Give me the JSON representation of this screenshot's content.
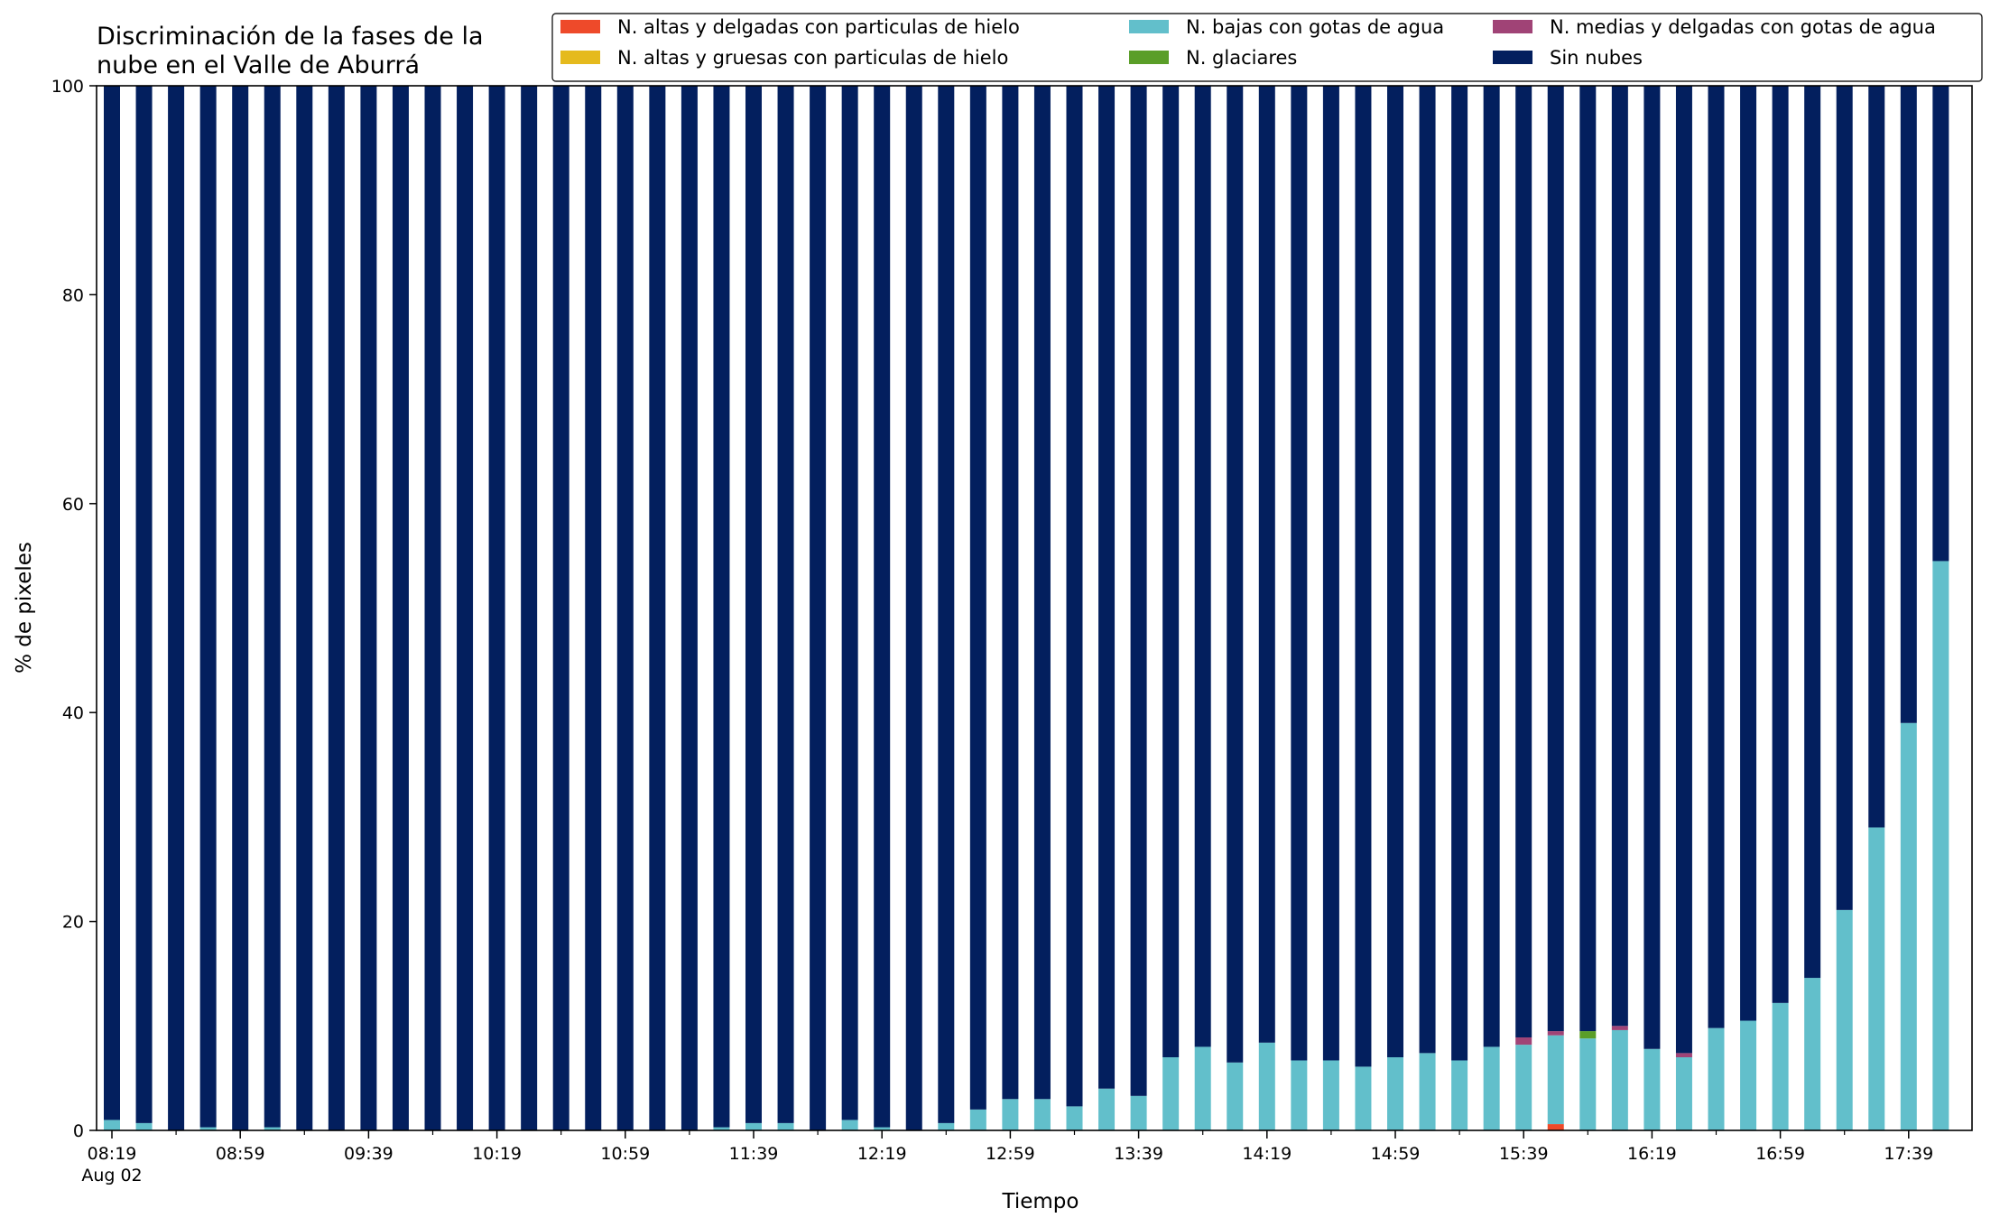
{
  "chart_data": {
    "type": "bar",
    "stacked": true,
    "title": "Discriminación de la fases de la\nnube en el Valle de Aburrá",
    "xlabel": "Tiempo",
    "ylabel": "% de pixeles",
    "ylim": [
      0,
      100
    ],
    "yticks": [
      0,
      20,
      40,
      60,
      80,
      100
    ],
    "grid": false,
    "legend_position": "top-right",
    "x_major_ticks": [
      {
        "index": 0,
        "label": "08:19",
        "sublabel": "Aug 02"
      },
      {
        "index": 4,
        "label": "08:59",
        "sublabel": ""
      },
      {
        "index": 8,
        "label": "09:39",
        "sublabel": ""
      },
      {
        "index": 12,
        "label": "10:19",
        "sublabel": ""
      },
      {
        "index": 16,
        "label": "10:59",
        "sublabel": ""
      },
      {
        "index": 20,
        "label": "11:39",
        "sublabel": ""
      },
      {
        "index": 24,
        "label": "12:19",
        "sublabel": ""
      },
      {
        "index": 28,
        "label": "12:59",
        "sublabel": ""
      },
      {
        "index": 32,
        "label": "13:39",
        "sublabel": ""
      },
      {
        "index": 36,
        "label": "14:19",
        "sublabel": ""
      },
      {
        "index": 40,
        "label": "14:59",
        "sublabel": ""
      },
      {
        "index": 44,
        "label": "15:39",
        "sublabel": ""
      },
      {
        "index": 48,
        "label": "16:19",
        "sublabel": ""
      },
      {
        "index": 52,
        "label": "16:59",
        "sublabel": ""
      },
      {
        "index": 56,
        "label": "17:39",
        "sublabel": ""
      }
    ],
    "bar_count": 58,
    "series": [
      {
        "name": "N. altas y delgadas con particulas de hielo",
        "color": "#EE4A2A",
        "values": [
          0,
          0,
          0,
          0,
          0,
          0,
          0,
          0,
          0,
          0,
          0,
          0,
          0,
          0,
          0,
          0,
          0,
          0,
          0,
          0,
          0,
          0,
          0,
          0,
          0,
          0,
          0,
          0,
          0,
          0,
          0,
          0,
          0,
          0,
          0,
          0,
          0,
          0,
          0,
          0,
          0,
          0,
          0,
          0,
          0,
          0.6,
          0,
          0,
          0,
          0,
          0,
          0,
          0,
          0,
          0,
          0,
          0,
          0
        ]
      },
      {
        "name": "N. altas y gruesas con particulas de hielo",
        "color": "#E5BA1D",
        "values": [
          0,
          0,
          0,
          0,
          0,
          0,
          0,
          0,
          0,
          0,
          0,
          0,
          0,
          0,
          0,
          0,
          0,
          0,
          0,
          0,
          0,
          0,
          0,
          0,
          0,
          0,
          0,
          0,
          0,
          0,
          0,
          0,
          0,
          0,
          0,
          0,
          0,
          0,
          0,
          0,
          0,
          0,
          0,
          0,
          0,
          0,
          0,
          0,
          0,
          0,
          0,
          0,
          0,
          0,
          0,
          0,
          0,
          0
        ]
      },
      {
        "name": "N. bajas con gotas de agua",
        "color": "#62BFCB",
        "values": [
          1.0,
          0.7,
          0,
          0.3,
          0,
          0.3,
          0,
          0,
          0,
          0,
          0,
          0,
          0,
          0,
          0,
          0,
          0,
          0,
          0,
          0.3,
          0.7,
          0.7,
          0,
          1.0,
          0.3,
          0,
          0.7,
          2.0,
          3.0,
          3.0,
          2.3,
          4.0,
          3.3,
          7.0,
          8.0,
          6.5,
          8.4,
          6.7,
          6.7,
          6.1,
          7.0,
          7.4,
          6.7,
          8.0,
          8.2,
          8.5,
          8.8,
          9.6,
          7.8,
          7.0,
          9.8,
          10.5,
          12.2,
          14.6,
          21.1,
          29.0,
          39.0,
          54.5
        ]
      },
      {
        "name": "N. glaciares",
        "color": "#5A9E28",
        "values": [
          0,
          0,
          0,
          0,
          0,
          0,
          0,
          0,
          0,
          0,
          0,
          0,
          0,
          0,
          0,
          0,
          0,
          0,
          0,
          0,
          0,
          0,
          0,
          0,
          0,
          0,
          0,
          0,
          0,
          0,
          0,
          0,
          0,
          0,
          0,
          0,
          0,
          0,
          0,
          0,
          0,
          0,
          0,
          0,
          0,
          0,
          0.7,
          0,
          0,
          0,
          0,
          0,
          0,
          0,
          0,
          0,
          0,
          0
        ]
      },
      {
        "name": "N. medias y delgadas con gotas de agua",
        "color": "#A04376",
        "values": [
          0,
          0,
          0,
          0,
          0,
          0,
          0,
          0,
          0,
          0,
          0,
          0,
          0,
          0,
          0,
          0,
          0,
          0,
          0,
          0,
          0,
          0,
          0,
          0,
          0,
          0,
          0,
          0,
          0,
          0,
          0,
          0,
          0,
          0,
          0,
          0,
          0,
          0,
          0,
          0,
          0,
          0,
          0,
          0,
          0.7,
          0.4,
          0,
          0.4,
          0,
          0.4,
          0,
          0,
          0,
          0,
          0,
          0,
          0,
          0
        ]
      },
      {
        "name": "Sin nubes",
        "color": "#031F5E",
        "values": [
          99.0,
          99.3,
          100,
          99.7,
          100,
          99.7,
          100,
          100,
          100,
          100,
          100,
          100,
          100,
          100,
          100,
          100,
          100,
          100,
          100,
          99.7,
          99.3,
          99.3,
          100,
          99.0,
          99.7,
          100,
          99.3,
          98.0,
          97.0,
          97.0,
          97.7,
          96.0,
          96.7,
          93.0,
          92.0,
          93.5,
          91.6,
          93.3,
          93.3,
          93.9,
          93.0,
          92.6,
          93.3,
          92.0,
          91.1,
          90.5,
          90.5,
          90.0,
          92.2,
          92.6,
          90.2,
          89.5,
          87.8,
          85.4,
          78.9,
          71.0,
          61.0,
          45.5
        ]
      }
    ]
  }
}
